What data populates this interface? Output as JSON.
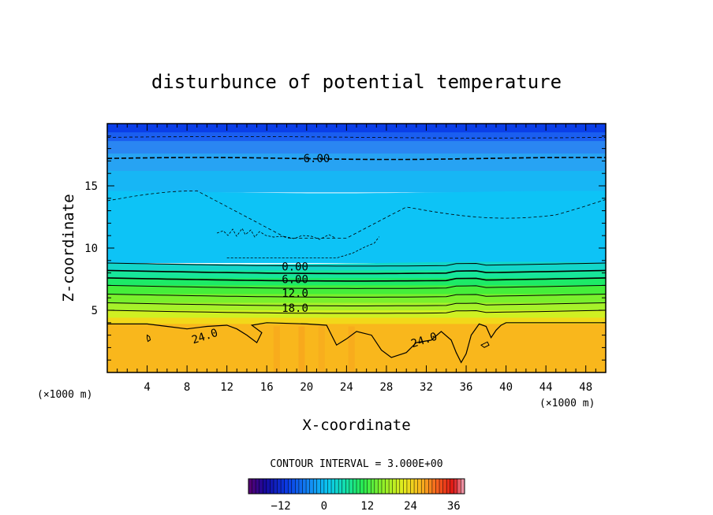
{
  "chart_data": {
    "type": "contour",
    "title": "disturbunce of potential temperature",
    "xlabel": "X-coordinate",
    "ylabel": "Z-coordinate",
    "x_unit": "(×1000 m)",
    "x_unit_right": "(×1000 m)",
    "xlim": [
      0,
      50
    ],
    "ylim": [
      0,
      20
    ],
    "x_ticks": [
      4,
      8,
      12,
      16,
      20,
      24,
      28,
      32,
      36,
      40,
      44,
      48
    ],
    "y_ticks": [
      5,
      10,
      15
    ],
    "contour_interval_text": "CONTOUR INTERVAL = 3.000E+00",
    "contour_labels": [
      {
        "text": "-6.00",
        "x": 19,
        "z": 17.2
      },
      {
        "text": "0.00",
        "x": 17.5,
        "z": 8.5
      },
      {
        "text": "6.00",
        "x": 17.5,
        "z": 7.5
      },
      {
        "text": "12.0",
        "x": 17.5,
        "z": 6.4
      },
      {
        "text": "18.0",
        "x": 17.5,
        "z": 5.2
      },
      {
        "text": "24.0",
        "x": 8.5,
        "z": 2.6
      },
      {
        "text": "24.0",
        "x": 30.5,
        "z": 2.3
      }
    ],
    "colorbar": {
      "range": [
        -21,
        39
      ],
      "tick_values": [
        -12,
        0,
        12,
        24,
        36
      ],
      "tick_labels": [
        "−12",
        "0",
        "12",
        "24",
        "36"
      ]
    },
    "layers": [
      {
        "z_top": 20,
        "value": -15,
        "color": "#0a3ee8"
      },
      {
        "z_top": 19.3,
        "value": -12,
        "color": "#1a5ef0"
      },
      {
        "z_top": 18.6,
        "value": -9,
        "color": "#2a86f2"
      },
      {
        "z_top": 17.6,
        "value": -6,
        "color": "#27a3f3"
      },
      {
        "z_top": 16.2,
        "value": -4,
        "color": "#17b6f5"
      },
      {
        "z_top": 14.5,
        "value": -2,
        "color": "#0dc3f6"
      },
      {
        "z_top": 8.8,
        "value": 0,
        "color": "#13d6c9"
      },
      {
        "z_top": 8.2,
        "value": 3,
        "color": "#17e69a"
      },
      {
        "z_top": 7.6,
        "value": 6,
        "color": "#1dea67"
      },
      {
        "z_top": 7.0,
        "value": 9,
        "color": "#45ee3a"
      },
      {
        "z_top": 6.3,
        "value": 12,
        "color": "#79f02d"
      },
      {
        "z_top": 5.6,
        "value": 15,
        "color": "#a6f12a"
      },
      {
        "z_top": 5.0,
        "value": 18,
        "color": "#d0f022"
      },
      {
        "z_top": 4.4,
        "value": 21,
        "color": "#f2d81a"
      },
      {
        "z_top": 3.9,
        "value": 24,
        "color": "#f9b71c"
      }
    ]
  }
}
